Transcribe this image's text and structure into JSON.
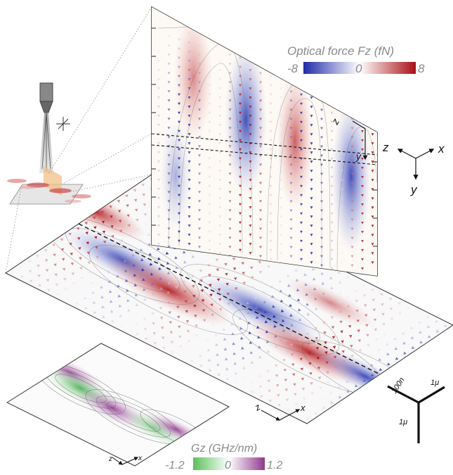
{
  "force_colorbar": {
    "title": "Optical force Fz (fN)",
    "min_label": "-8",
    "mid_label": "0",
    "max_label": "8",
    "colors": [
      "#1f2aa8",
      "#ffffff",
      "#a80f14"
    ]
  },
  "gradient_colorbar": {
    "title": "Gz (GHz/nm)",
    "min_label": "-1.2",
    "mid_label": "0",
    "max_label": "1.2",
    "colors": [
      "#4caf50",
      "#ffffff",
      "#8e3b8e"
    ]
  },
  "coord_triad": {
    "z": "z",
    "x": "x",
    "y": "y"
  },
  "vertical_panel_axes": {
    "z": "z",
    "y": "y"
  },
  "floor_panel_axes": {
    "z": "z",
    "x": "x"
  },
  "small_panel_axes": {
    "z": "z",
    "x": "x"
  },
  "scale_bar": {
    "depth": "100n",
    "width": "1μ",
    "height": "1μ"
  }
}
